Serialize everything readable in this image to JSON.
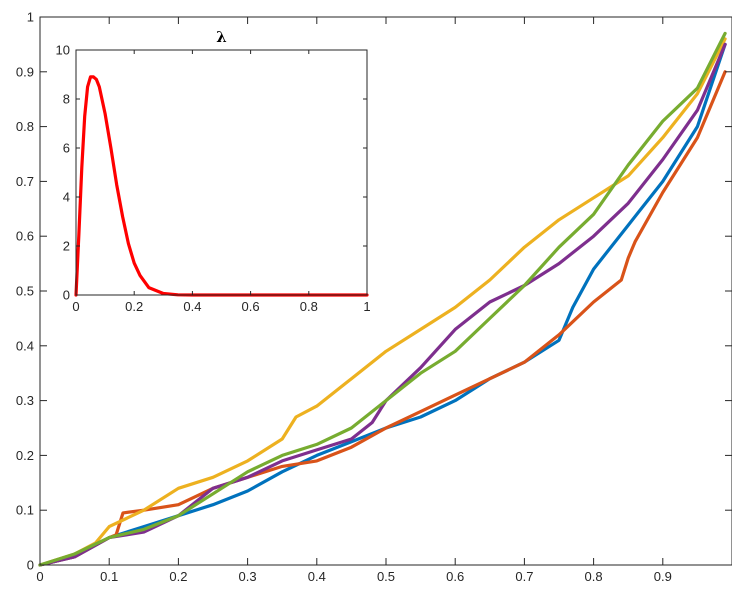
{
  "chart_data": [
    {
      "type": "line",
      "title": "",
      "xlabel": "",
      "ylabel": "",
      "xlim": [
        0,
        1
      ],
      "ylim": [
        0,
        1
      ],
      "xticks": [
        0,
        0.1,
        0.2,
        0.3,
        0.4,
        0.5,
        0.6,
        0.7,
        0.8,
        0.9
      ],
      "xtick_labels": [
        "0",
        "0.1",
        "0.2",
        "0.3",
        "0.4",
        "0.5",
        "0.6",
        "0.7",
        "0.8",
        "0.9"
      ],
      "yticks": [
        0,
        0.1,
        0.2,
        0.3,
        0.4,
        0.5,
        0.6,
        0.7,
        0.8,
        0.9,
        1
      ],
      "ytick_labels": [
        "0",
        "0.1",
        "0.2",
        "0.3",
        "0.4",
        "0.5",
        "0.6",
        "0.7",
        "0.8",
        "0.9",
        "1"
      ],
      "grid": false,
      "series": [
        {
          "color": "#0072BD",
          "x": [
            0,
            0.05,
            0.1,
            0.15,
            0.2,
            0.25,
            0.3,
            0.35,
            0.4,
            0.45,
            0.5,
            0.55,
            0.6,
            0.65,
            0.7,
            0.75,
            0.77,
            0.8,
            0.85,
            0.9,
            0.95,
            0.99
          ],
          "y": [
            0,
            0.015,
            0.05,
            0.07,
            0.09,
            0.11,
            0.135,
            0.17,
            0.2,
            0.225,
            0.25,
            0.27,
            0.3,
            0.34,
            0.37,
            0.41,
            0.47,
            0.54,
            0.62,
            0.7,
            0.8,
            0.95
          ]
        },
        {
          "color": "#D95319",
          "x": [
            0,
            0.05,
            0.1,
            0.11,
            0.12,
            0.15,
            0.2,
            0.25,
            0.3,
            0.35,
            0.4,
            0.45,
            0.5,
            0.55,
            0.6,
            0.65,
            0.7,
            0.75,
            0.8,
            0.84,
            0.85,
            0.86,
            0.9,
            0.95,
            0.99
          ],
          "y": [
            0,
            0.015,
            0.05,
            0.055,
            0.095,
            0.1,
            0.11,
            0.14,
            0.16,
            0.18,
            0.19,
            0.215,
            0.25,
            0.28,
            0.31,
            0.34,
            0.37,
            0.42,
            0.48,
            0.52,
            0.56,
            0.59,
            0.68,
            0.78,
            0.9
          ]
        },
        {
          "color": "#EDB120",
          "x": [
            0,
            0.05,
            0.08,
            0.1,
            0.15,
            0.2,
            0.25,
            0.3,
            0.35,
            0.37,
            0.4,
            0.45,
            0.5,
            0.55,
            0.6,
            0.65,
            0.7,
            0.75,
            0.8,
            0.85,
            0.9,
            0.95,
            0.99
          ],
          "y": [
            0,
            0.02,
            0.04,
            0.07,
            0.1,
            0.14,
            0.16,
            0.19,
            0.23,
            0.27,
            0.29,
            0.34,
            0.39,
            0.43,
            0.47,
            0.52,
            0.58,
            0.63,
            0.67,
            0.71,
            0.78,
            0.86,
            0.96
          ]
        },
        {
          "color": "#7E2F8E",
          "x": [
            0,
            0.05,
            0.1,
            0.15,
            0.2,
            0.25,
            0.3,
            0.35,
            0.4,
            0.45,
            0.48,
            0.5,
            0.55,
            0.6,
            0.65,
            0.7,
            0.75,
            0.8,
            0.85,
            0.9,
            0.95,
            0.99
          ],
          "y": [
            0,
            0.015,
            0.05,
            0.06,
            0.09,
            0.14,
            0.16,
            0.19,
            0.21,
            0.23,
            0.26,
            0.3,
            0.36,
            0.43,
            0.48,
            0.51,
            0.55,
            0.6,
            0.66,
            0.74,
            0.83,
            0.95
          ]
        },
        {
          "color": "#77AC30",
          "x": [
            0,
            0.05,
            0.1,
            0.15,
            0.2,
            0.25,
            0.3,
            0.35,
            0.4,
            0.45,
            0.5,
            0.55,
            0.6,
            0.65,
            0.7,
            0.75,
            0.8,
            0.85,
            0.9,
            0.95,
            0.99
          ],
          "y": [
            0,
            0.02,
            0.05,
            0.065,
            0.09,
            0.13,
            0.17,
            0.2,
            0.22,
            0.25,
            0.3,
            0.35,
            0.39,
            0.45,
            0.51,
            0.58,
            0.64,
            0.73,
            0.81,
            0.87,
            0.97
          ]
        }
      ]
    },
    {
      "type": "line",
      "title": "λ",
      "xlabel": "",
      "ylabel": "",
      "xlim": [
        0,
        1
      ],
      "ylim": [
        0,
        10
      ],
      "xticks": [
        0,
        0.2,
        0.4,
        0.6,
        0.8,
        1
      ],
      "xtick_labels": [
        "0",
        "0.2",
        "0.4",
        "0.6",
        "0.8",
        "1"
      ],
      "yticks": [
        0,
        2,
        4,
        6,
        8,
        10
      ],
      "ytick_labels": [
        "0",
        "2",
        "4",
        "6",
        "8",
        "10"
      ],
      "grid": false,
      "series": [
        {
          "color": "#FF0000",
          "x": [
            0,
            0.01,
            0.02,
            0.03,
            0.04,
            0.05,
            0.06,
            0.07,
            0.08,
            0.1,
            0.12,
            0.14,
            0.16,
            0.18,
            0.2,
            0.22,
            0.25,
            0.3,
            0.35,
            0.4,
            0.6,
            0.8,
            1
          ],
          "y": [
            0,
            2.5,
            5.2,
            7.3,
            8.5,
            8.9,
            8.9,
            8.8,
            8.5,
            7.4,
            6.0,
            4.5,
            3.2,
            2.1,
            1.3,
            0.8,
            0.3,
            0.06,
            0.01,
            0,
            0,
            0,
            0
          ]
        }
      ]
    }
  ]
}
